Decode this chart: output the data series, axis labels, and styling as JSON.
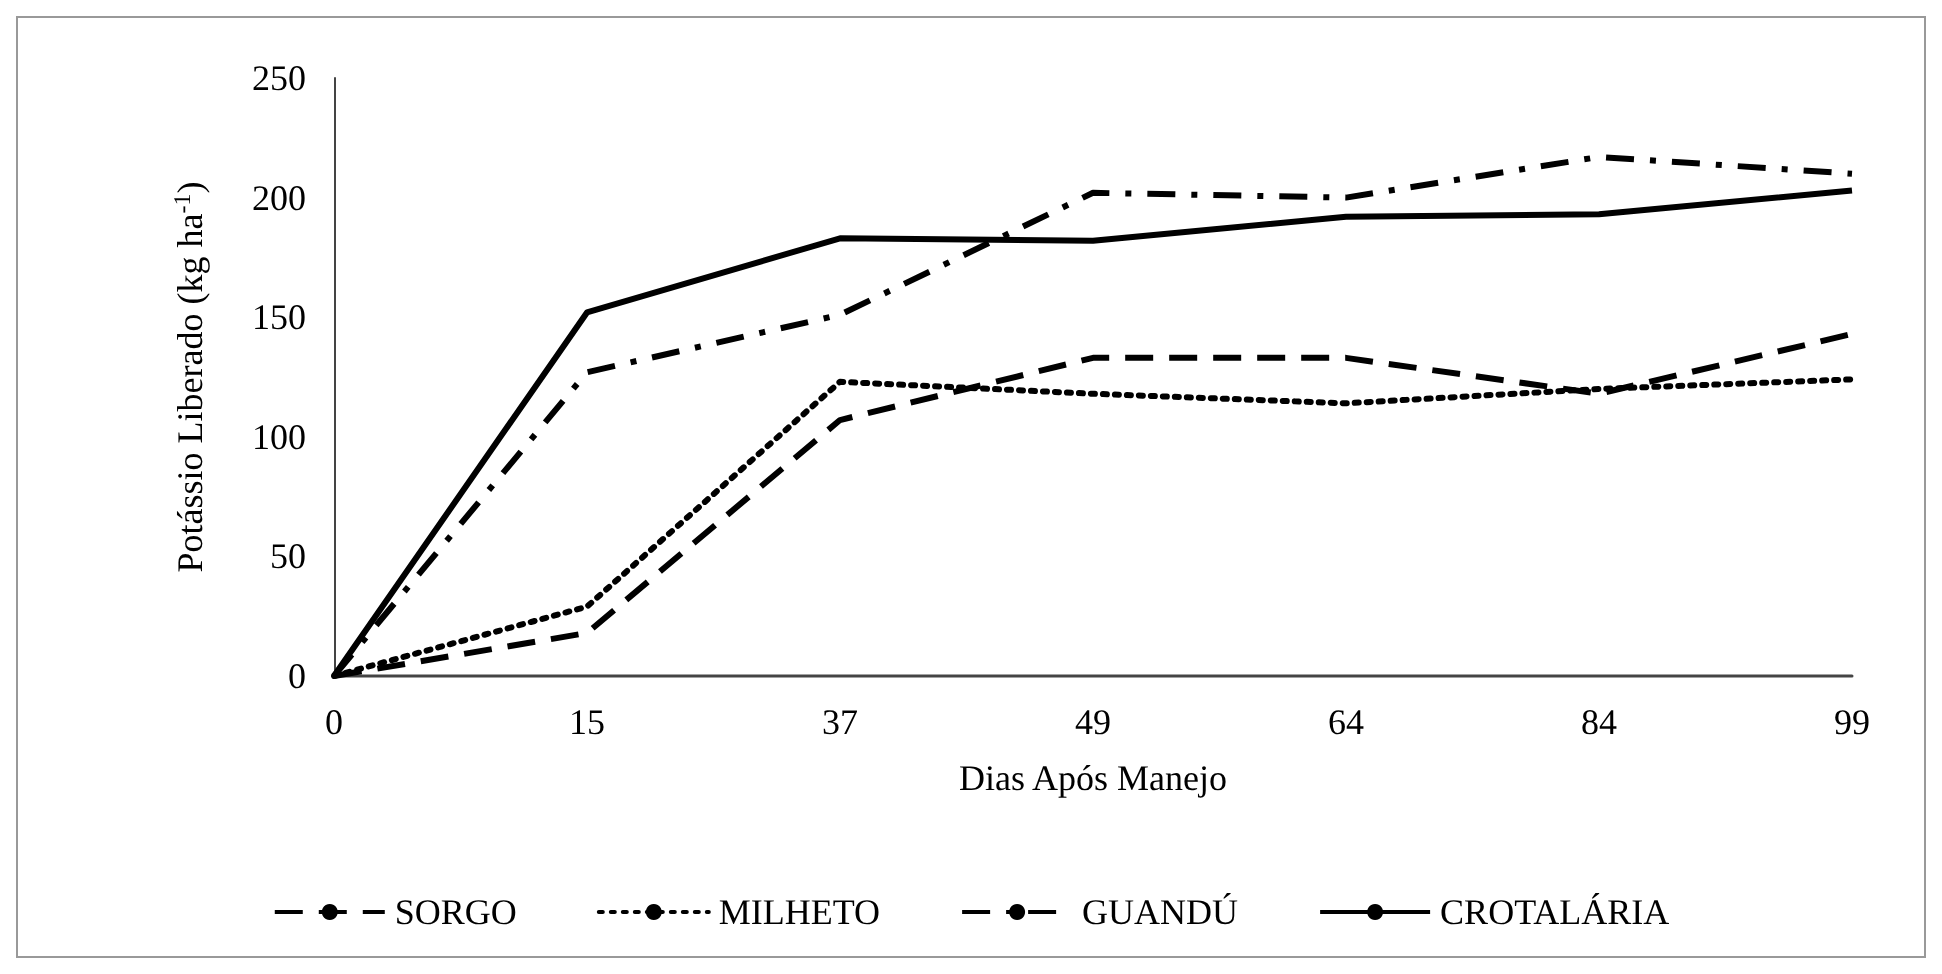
{
  "chart_data": {
    "type": "line",
    "xlabel": "Dias Após Manejo",
    "ylabel": "Potássio Liberado (kg ha$^{-1}$)",
    "categories": [
      "0",
      "15",
      "37",
      "49",
      "64",
      "84",
      "99"
    ],
    "series": [
      {
        "name": "SORGO",
        "color": "#000000",
        "line_style": "dashed",
        "values": [
          0,
          18,
          107,
          133,
          133,
          118,
          143
        ]
      },
      {
        "name": "MILHETO",
        "color": "#000000",
        "line_style": "dotted",
        "values": [
          0,
          29,
          123,
          118,
          114,
          120,
          124
        ]
      },
      {
        "name": "GUANDÚ",
        "color": "#000000",
        "line_style": "dashdot",
        "values": [
          0,
          127,
          151,
          202,
          200,
          217,
          210
        ]
      },
      {
        "name": "CROTALÁRIA",
        "color": "#000000",
        "line_style": "solid",
        "values": [
          0,
          152,
          183,
          182,
          192,
          193,
          203
        ]
      }
    ],
    "ylim": [
      0,
      250
    ],
    "yticks": [
      0,
      50,
      100,
      150,
      200,
      250
    ],
    "grid": false,
    "legend": "bottom",
    "marker": "none"
  }
}
